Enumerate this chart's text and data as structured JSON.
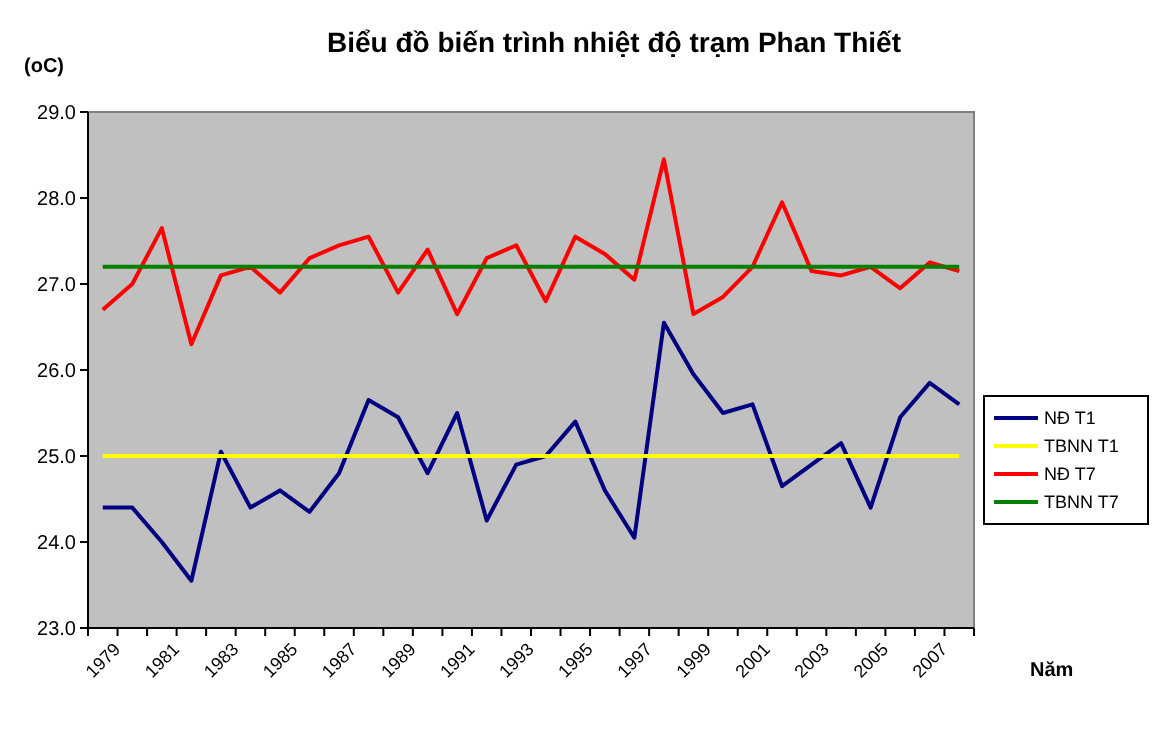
{
  "chart_data": {
    "type": "line",
    "title": "Biểu đồ biến trình nhiệt độ trạm Phan Thiết",
    "ylabel": "(oC)",
    "xlabel": "Năm",
    "categories": [
      "1979",
      null,
      "1981",
      null,
      "1983",
      null,
      "1985",
      null,
      "1987",
      null,
      "1989",
      null,
      "1991",
      null,
      "1993",
      null,
      "1995",
      null,
      "1997",
      null,
      "1999",
      null,
      "2001",
      null,
      "2003",
      null,
      "2005",
      null,
      "2007",
      null
    ],
    "series": [
      {
        "name": "NĐ T1",
        "color": "#000080",
        "values": [
          24.4,
          24.4,
          24.0,
          23.55,
          25.05,
          24.4,
          24.6,
          24.35,
          24.8,
          25.65,
          25.45,
          24.8,
          25.5,
          24.25,
          24.9,
          25.0,
          25.4,
          24.6,
          24.05,
          26.55,
          25.95,
          25.5,
          25.6,
          24.65,
          24.9,
          25.15,
          24.4,
          25.45,
          25.85,
          25.6
        ]
      },
      {
        "name": "TBNN T1",
        "color": "#ffff00",
        "values": [
          25,
          25,
          25,
          25,
          25,
          25,
          25,
          25,
          25,
          25,
          25,
          25,
          25,
          25,
          25,
          25,
          25,
          25,
          25,
          25,
          25,
          25,
          25,
          25,
          25,
          25,
          25,
          25,
          25,
          25
        ]
      },
      {
        "name": "NĐ T7",
        "color": "#ff0000",
        "values": [
          26.7,
          27.0,
          27.65,
          26.3,
          27.1,
          27.2,
          26.9,
          27.3,
          27.45,
          27.55,
          26.9,
          27.4,
          26.65,
          27.3,
          27.45,
          26.8,
          27.55,
          27.35,
          27.05,
          28.45,
          26.65,
          26.85,
          27.2,
          27.95,
          27.15,
          27.1,
          27.2,
          26.95,
          27.25,
          27.15
        ]
      },
      {
        "name": "TBNN T7",
        "color": "#008000",
        "values": [
          27.2,
          27.2,
          27.2,
          27.2,
          27.2,
          27.2,
          27.2,
          27.2,
          27.2,
          27.2,
          27.2,
          27.2,
          27.2,
          27.2,
          27.2,
          27.2,
          27.2,
          27.2,
          27.2,
          27.2,
          27.2,
          27.2,
          27.2,
          27.2,
          27.2,
          27.2,
          27.2,
          27.2,
          27.2,
          27.2
        ]
      }
    ],
    "ylim": [
      23,
      29
    ],
    "yticks": [
      {
        "value": 23,
        "label": "23.0"
      },
      {
        "value": 24,
        "label": "24.0"
      },
      {
        "value": 25,
        "label": "25.0"
      },
      {
        "value": 26,
        "label": "26.0"
      },
      {
        "value": 27,
        "label": "27.0"
      },
      {
        "value": 28,
        "label": "28.0"
      },
      {
        "value": 29,
        "label": "29.0"
      }
    ],
    "grid": false,
    "legend": "right",
    "marker": "none",
    "line_style": "solid"
  }
}
